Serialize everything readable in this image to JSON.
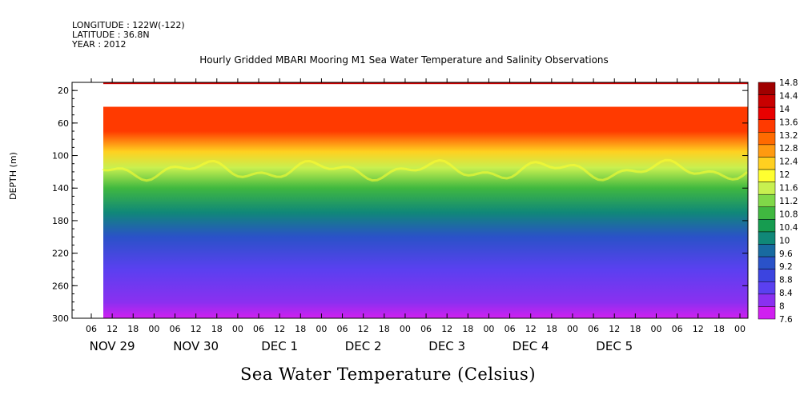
{
  "meta": {
    "longitude": "LONGITUDE : 122W(-122)",
    "latitude": "LATITUDE : 36.8N",
    "year": "YEAR : 2012"
  },
  "chart_data": {
    "type": "heatmap",
    "title": "Hourly Gridded MBARI Mooring M1 Sea Water Temperature and Salinity Observations",
    "xlabel": "Sea Water Temperature (Celsius)",
    "ylabel": "DEPTH (m)",
    "y_ticks": [
      20,
      60,
      100,
      140,
      180,
      220,
      260,
      300
    ],
    "ylim": [
      300,
      10
    ],
    "x_hour_ticks": [
      "06",
      "12",
      "18",
      "00",
      "06",
      "12",
      "18",
      "00",
      "06",
      "12",
      "18",
      "00",
      "06",
      "12",
      "18",
      "00",
      "06",
      "12",
      "18",
      "00",
      "06",
      "12",
      "18",
      "00",
      "06",
      "12",
      "18",
      "00",
      "06",
      "12",
      "18",
      "00"
    ],
    "x_day_labels": [
      "NOV 29",
      "NOV 30",
      "DEC  1",
      "DEC  2",
      "DEC  3",
      "DEC  4",
      "DEC  5"
    ],
    "colorbar": {
      "levels": [
        7.6,
        8,
        8.4,
        8.8,
        9.2,
        9.6,
        10,
        10.4,
        10.8,
        11.2,
        11.6,
        12,
        12.4,
        12.8,
        13.2,
        13.6,
        14,
        14.4,
        14.8
      ],
      "labels": [
        "14.8",
        "14.4",
        "14",
        "13.6",
        "13.2",
        "12.8",
        "12.4",
        "12",
        "11.6",
        "11.2",
        "10.8",
        "10.4",
        "10",
        "9.6",
        "9.2",
        "8.8",
        "8.4",
        "8",
        "7.6"
      ],
      "colors": [
        "#a00000",
        "#c80000",
        "#e80000",
        "#ff3a00",
        "#ff6a00",
        "#ff9a10",
        "#ffd020",
        "#ffff30",
        "#c8f050",
        "#80d848",
        "#40b840",
        "#169c50",
        "#108878",
        "#186aa0",
        "#2a52c8",
        "#3c44e0",
        "#5a40f0",
        "#8a30f0",
        "#d020f0"
      ]
    },
    "profile": [
      {
        "depth": 15,
        "temp": 14.6
      },
      {
        "depth": 40,
        "temp": 14.0
      },
      {
        "depth": 70,
        "temp": 13.9
      },
      {
        "depth": 95,
        "temp": 12.8
      },
      {
        "depth": 115,
        "temp": 12.0
      },
      {
        "depth": 140,
        "temp": 11.0
      },
      {
        "depth": 170,
        "temp": 10.2
      },
      {
        "depth": 200,
        "temp": 9.4
      },
      {
        "depth": 240,
        "temp": 8.8
      },
      {
        "depth": 280,
        "temp": 8.2
      },
      {
        "depth": 300,
        "temp": 7.8
      }
    ],
    "data_gap_depth_range": [
      20,
      40
    ]
  }
}
